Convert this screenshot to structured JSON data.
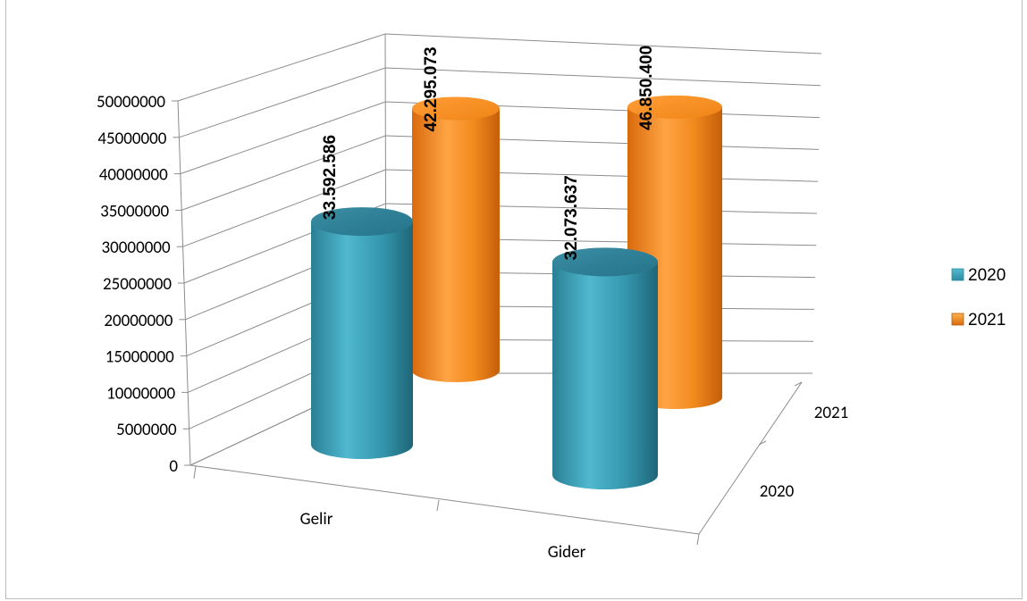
{
  "chart_data": {
    "type": "bar",
    "style": "3d-cylinder",
    "categories": [
      "Gelir",
      "Gider"
    ],
    "series": [
      {
        "name": "2020",
        "values": [
          33592586,
          32073637
        ],
        "labels": [
          "33.592.586",
          "32.073.637"
        ],
        "color": "#3aa2bb"
      },
      {
        "name": "2021",
        "values": [
          42295073,
          46850400
        ],
        "labels": [
          "42.295.073",
          "46.850.400"
        ],
        "color": "#f08a1c"
      }
    ],
    "depth_labels": [
      "2020",
      "2021"
    ],
    "y_ticks": [
      "0",
      "5000000",
      "10000000",
      "15000000",
      "20000000",
      "25000000",
      "30000000",
      "35000000",
      "40000000",
      "45000000",
      "50000000"
    ],
    "ylim": [
      0,
      50000000
    ],
    "grid": true,
    "legend_position": "right"
  }
}
